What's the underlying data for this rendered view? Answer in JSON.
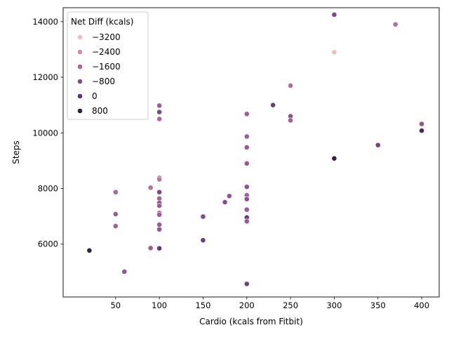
{
  "chart_data": {
    "type": "scatter",
    "xlabel": "Cardio (kcals from Fitbit)",
    "ylabel": "Steps",
    "xlim": [
      -10,
      420
    ],
    "ylim": [
      4100,
      14500
    ],
    "xticks": [
      50,
      100,
      150,
      200,
      250,
      300,
      350,
      400
    ],
    "xtick_labels": [
      "50",
      "100",
      "150",
      "200",
      "250",
      "300",
      "350",
      "400"
    ],
    "yticks": [
      6000,
      8000,
      10000,
      12000,
      14000
    ],
    "ytick_labels": [
      "6000",
      "8000",
      "10000",
      "12000",
      "14000"
    ],
    "grid": false,
    "legend": {
      "title": "Net Diff (kcals)",
      "placement": "top-left",
      "entries": [
        {
          "label": "−3200",
          "value": -3200,
          "color": "#e9c0ba"
        },
        {
          "label": "−2400",
          "value": -2400,
          "color": "#d08f9e"
        },
        {
          "label": "−1600",
          "value": -1600,
          "color": "#ad6696"
        },
        {
          "label": "−800",
          "value": -800,
          "color": "#844c8a"
        },
        {
          "label": "0",
          "value": 0,
          "color": "#5a3372"
        },
        {
          "label": "800",
          "value": 800,
          "color": "#2d1e3e"
        }
      ]
    },
    "points": [
      {
        "x": 300,
        "y": 14250,
        "hue": -700
      },
      {
        "x": 370,
        "y": 13900,
        "hue": -1800
      },
      {
        "x": 300,
        "y": 12900,
        "hue": -3300
      },
      {
        "x": 250,
        "y": 11700,
        "hue": -1700
      },
      {
        "x": 230,
        "y": 11000,
        "hue": -300
      },
      {
        "x": 100,
        "y": 10980,
        "hue": -1300
      },
      {
        "x": 100,
        "y": 10750,
        "hue": -600
      },
      {
        "x": 200,
        "y": 10680,
        "hue": -1300
      },
      {
        "x": 250,
        "y": 10600,
        "hue": -900
      },
      {
        "x": 100,
        "y": 10500,
        "hue": -1600
      },
      {
        "x": 250,
        "y": 10450,
        "hue": -1400
      },
      {
        "x": 400,
        "y": 10320,
        "hue": -1000
      },
      {
        "x": 400,
        "y": 10080,
        "hue": 300
      },
      {
        "x": 200,
        "y": 9870,
        "hue": -1300
      },
      {
        "x": 350,
        "y": 9560,
        "hue": -500
      },
      {
        "x": 200,
        "y": 9480,
        "hue": -1200
      },
      {
        "x": 300,
        "y": 9080,
        "hue": 700
      },
      {
        "x": 200,
        "y": 8900,
        "hue": -1200
      },
      {
        "x": 100,
        "y": 8380,
        "hue": -1500
      },
      {
        "x": 100,
        "y": 8330,
        "hue": -1900
      },
      {
        "x": 200,
        "y": 8060,
        "hue": -1000
      },
      {
        "x": 90,
        "y": 8030,
        "hue": -1800
      },
      {
        "x": 50,
        "y": 7870,
        "hue": -1600
      },
      {
        "x": 100,
        "y": 7870,
        "hue": -700
      },
      {
        "x": 180,
        "y": 7730,
        "hue": -1100
      },
      {
        "x": 200,
        "y": 7760,
        "hue": -1400
      },
      {
        "x": 200,
        "y": 7620,
        "hue": -1000
      },
      {
        "x": 100,
        "y": 7640,
        "hue": -1400
      },
      {
        "x": 175,
        "y": 7510,
        "hue": -800
      },
      {
        "x": 100,
        "y": 7480,
        "hue": -900
      },
      {
        "x": 100,
        "y": 7380,
        "hue": -1300
      },
      {
        "x": 200,
        "y": 7240,
        "hue": -1300
      },
      {
        "x": 100,
        "y": 7120,
        "hue": -1600
      },
      {
        "x": 50,
        "y": 7080,
        "hue": -1300
      },
      {
        "x": 100,
        "y": 7060,
        "hue": -1300
      },
      {
        "x": 150,
        "y": 6990,
        "hue": -700
      },
      {
        "x": 200,
        "y": 6960,
        "hue": -300
      },
      {
        "x": 200,
        "y": 6820,
        "hue": -1300
      },
      {
        "x": 100,
        "y": 6700,
        "hue": -1300
      },
      {
        "x": 50,
        "y": 6650,
        "hue": -1400
      },
      {
        "x": 100,
        "y": 6530,
        "hue": -1200
      },
      {
        "x": 150,
        "y": 6140,
        "hue": -300
      },
      {
        "x": 90,
        "y": 5860,
        "hue": -1300
      },
      {
        "x": 100,
        "y": 5850,
        "hue": -200
      },
      {
        "x": 20,
        "y": 5770,
        "hue": 700
      },
      {
        "x": 60,
        "y": 5010,
        "hue": -1100
      },
      {
        "x": 200,
        "y": 4570,
        "hue": -400
      }
    ]
  }
}
